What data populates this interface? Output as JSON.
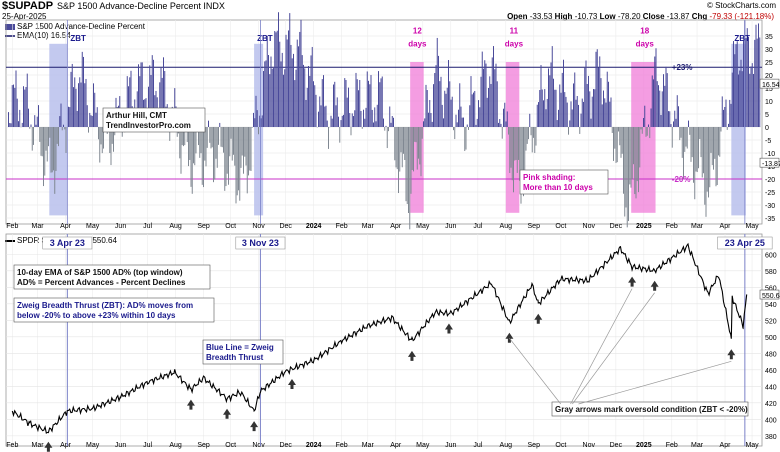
{
  "header": {
    "ticker": "$SUPADP",
    "description": "S&P 1500 Advance-Decline Percent INDX",
    "date": "25-Apr-2025",
    "open_label": "Open",
    "open": "-33.53",
    "high_label": "High",
    "high": "-10.73",
    "low_label": "Low",
    "low": "-78.20",
    "close_label": "Close",
    "close": "-13.87",
    "chg_label": "Chg",
    "chg": "-79.33 (-121.18%)",
    "copyright": "© StockCharts.com"
  },
  "colors": {
    "bars_up": "#4a4a9a",
    "bars_down": "#808892",
    "zbt_shade": "#b8c0ec",
    "pink_shade": "#f07cd8",
    "purple_line": "#1a1a6e",
    "magenta_line": "#c830c8",
    "price_line": "#000000",
    "callout_text_blue": "#1a1a8c",
    "callout_text_magenta": "#cc00aa"
  },
  "chart_data": [
    {
      "type": "bar",
      "title": "S&P 1500 Advance-Decline Percent",
      "legend": [
        "S&P 1500 Advance-Decline Percent",
        "EMA(10) 16.54"
      ],
      "ylim": [
        -40,
        40
      ],
      "y_ticks": [
        -35,
        -30,
        -25,
        -20,
        -15,
        -10,
        -5,
        0,
        5,
        10,
        15,
        20,
        25,
        30,
        35
      ],
      "right_labels": [
        "16.54",
        "-13.87"
      ],
      "x_tick_labels": [
        "Feb",
        "Mar",
        "Apr",
        "May",
        "Jun",
        "Jul",
        "Aug",
        "Sep",
        "Oct",
        "Nov",
        "Dec",
        "2024",
        "Feb",
        "Mar",
        "Apr",
        "May",
        "Jun",
        "Jul",
        "Aug",
        "Sep",
        "Oct",
        "Nov",
        "Dec",
        "2025",
        "Feb",
        "Mar",
        "Apr",
        "May"
      ],
      "reference_lines": [
        {
          "value": 23,
          "label": "+23%"
        },
        {
          "value": -20,
          "label": "-20%"
        }
      ],
      "zbt_labels": [
        "ZBT",
        "ZBT",
        "ZBT"
      ],
      "pink_labels": [
        "12 days",
        "11 days",
        "18 days"
      ],
      "annotations": [
        "Arthur Hill, CMT\nTrendInvestorPro.com",
        "Pink shading:\nMore than 10 days"
      ],
      "series_desc": "EMA(10) of AD%, daily bars positive/negative",
      "ema_monthly": [
        {
          "x": "2023-02",
          "v": 10
        },
        {
          "x": "2023-03",
          "v": -18
        },
        {
          "x": "2023-04",
          "v": 22
        },
        {
          "x": "2023-05",
          "v": -8
        },
        {
          "x": "2023-06",
          "v": 15
        },
        {
          "x": "2023-07",
          "v": 18
        },
        {
          "x": "2023-08",
          "v": -14
        },
        {
          "x": "2023-09",
          "v": -10
        },
        {
          "x": "2023-10",
          "v": -22
        },
        {
          "x": "2023-11",
          "v": 32
        },
        {
          "x": "2023-12",
          "v": 30
        },
        {
          "x": "2024-01",
          "v": 5
        },
        {
          "x": "2024-02",
          "v": 10
        },
        {
          "x": "2024-03",
          "v": 12
        },
        {
          "x": "2024-04",
          "v": -28
        },
        {
          "x": "2024-05",
          "v": 22
        },
        {
          "x": "2024-06",
          "v": 0
        },
        {
          "x": "2024-07",
          "v": 25
        },
        {
          "x": "2024-08",
          "v": -25
        },
        {
          "x": "2024-09",
          "v": 20
        },
        {
          "x": "2024-10",
          "v": 8
        },
        {
          "x": "2024-11",
          "v": 22
        },
        {
          "x": "2024-12",
          "v": -33
        },
        {
          "x": "2025-01",
          "v": 22
        },
        {
          "x": "2025-02",
          "v": -8
        },
        {
          "x": "2025-03",
          "v": -25
        },
        {
          "x": "2025-04",
          "v": 30
        }
      ]
    },
    {
      "type": "line",
      "title": "SPDR S&P 500 ETF 550.64",
      "legend": [
        "SPDR S&P 500 ETF 550.64"
      ],
      "ylim": [
        375,
        610
      ],
      "y_ticks": [
        380,
        400,
        420,
        440,
        460,
        480,
        500,
        520,
        540,
        560,
        580,
        600
      ],
      "right_label": "550.64",
      "x_tick_labels": [
        "Feb",
        "Mar",
        "Apr",
        "May",
        "Jun",
        "Jul",
        "Aug",
        "Sep",
        "Oct",
        "Nov",
        "Dec",
        "2024",
        "Feb",
        "Mar",
        "Apr",
        "May",
        "Jun",
        "Jul",
        "Aug",
        "Sep",
        "Oct",
        "Nov",
        "Dec",
        "2025",
        "Feb",
        "Mar",
        "Apr",
        "May"
      ],
      "date_callouts": [
        "3 Apr 23",
        "3 Nov 23",
        "23 Apr 25"
      ],
      "annotations": [
        "10-day EMA of S&P 1500 AD% (top window)\nAD% = Percent Advances - Percent Declines",
        "Zweig Breadth Thrust (ZBT): AD% moves from\nbelow -20% to above +23% within 10 days",
        "Blue Line = Zweig\nBreadth Thrust",
        "Gray arrows mark oversold condition (ZBT < -20%)"
      ],
      "points": [
        {
          "x": "2023-02-01",
          "y": 410
        },
        {
          "x": "2023-02-20",
          "y": 395
        },
        {
          "x": "2023-03-13",
          "y": 385
        },
        {
          "x": "2023-04-03",
          "y": 410
        },
        {
          "x": "2023-05-01",
          "y": 413
        },
        {
          "x": "2023-06-01",
          "y": 427
        },
        {
          "x": "2023-07-01",
          "y": 445
        },
        {
          "x": "2023-07-31",
          "y": 457
        },
        {
          "x": "2023-08-18",
          "y": 436
        },
        {
          "x": "2023-09-01",
          "y": 450
        },
        {
          "x": "2023-09-27",
          "y": 425
        },
        {
          "x": "2023-10-12",
          "y": 433
        },
        {
          "x": "2023-10-27",
          "y": 410
        },
        {
          "x": "2023-11-03",
          "y": 434
        },
        {
          "x": "2023-12-01",
          "y": 458
        },
        {
          "x": "2024-01-02",
          "y": 472
        },
        {
          "x": "2024-02-01",
          "y": 495
        },
        {
          "x": "2024-03-01",
          "y": 513
        },
        {
          "x": "2024-03-28",
          "y": 523
        },
        {
          "x": "2024-04-19",
          "y": 495
        },
        {
          "x": "2024-05-15",
          "y": 530
        },
        {
          "x": "2024-06-01",
          "y": 528
        },
        {
          "x": "2024-07-16",
          "y": 565
        },
        {
          "x": "2024-08-05",
          "y": 517
        },
        {
          "x": "2024-08-30",
          "y": 563
        },
        {
          "x": "2024-09-06",
          "y": 540
        },
        {
          "x": "2024-10-01",
          "y": 570
        },
        {
          "x": "2024-10-31",
          "y": 568
        },
        {
          "x": "2024-12-06",
          "y": 607
        },
        {
          "x": "2024-12-19",
          "y": 585
        },
        {
          "x": "2025-01-13",
          "y": 580
        },
        {
          "x": "2025-02-19",
          "y": 610
        },
        {
          "x": "2025-03-13",
          "y": 552
        },
        {
          "x": "2025-03-25",
          "y": 575
        },
        {
          "x": "2025-04-08",
          "y": 497
        },
        {
          "x": "2025-04-09",
          "y": 548
        },
        {
          "x": "2025-04-21",
          "y": 514
        },
        {
          "x": "2025-04-25",
          "y": 550
        }
      ],
      "arrow_dates": [
        "2023-03-13",
        "2023-08-18",
        "2023-09-27",
        "2023-10-27",
        "2023-12-08",
        "2024-04-19",
        "2024-05-30",
        "2024-08-05",
        "2024-09-06",
        "2024-12-19",
        "2025-01-13",
        "2025-04-08"
      ]
    }
  ],
  "labels": {
    "ticker": "$SUPADP",
    "desc": "S&P 1500 Advance-Decline Percent INDX",
    "date": "25-Apr-2025",
    "legend1": "S&P 1500 Advance-Decline Percent",
    "legend2": "EMA(10) 16.54",
    "legend3": "SPDR S&P 500 ETF 550.64"
  }
}
